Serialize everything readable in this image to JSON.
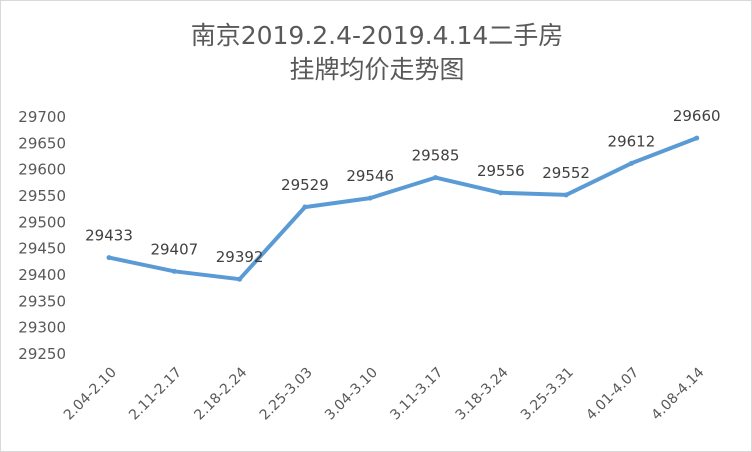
{
  "title_lines": [
    "南京2019.2.4-2019.4.14二手房",
    "挂牌均价走势图"
  ],
  "chart_data": {
    "type": "line",
    "title": "南京2019.2.4-2019.4.14二手房挂牌均价走势图",
    "categories": [
      "2.04-2.10",
      "2.11-2.17",
      "2.18-2.24",
      "2.25-3.03",
      "3.04-3.10",
      "3.11-3.17",
      "3.18-3.24",
      "3.25-3.31",
      "4.01-4.07",
      "4.08-4.14"
    ],
    "series": [
      {
        "values": [
          29433,
          29407,
          29392,
          29529,
          29546,
          29585,
          29556,
          29552,
          29612,
          29660
        ]
      }
    ],
    "ylim": [
      29250,
      29700
    ],
    "yticks": [
      29250,
      29300,
      29350,
      29400,
      29450,
      29500,
      29550,
      29600,
      29650,
      29700
    ],
    "grid": false,
    "legend": "none",
    "data_labels": true,
    "line_color": "#5b9bd5"
  }
}
